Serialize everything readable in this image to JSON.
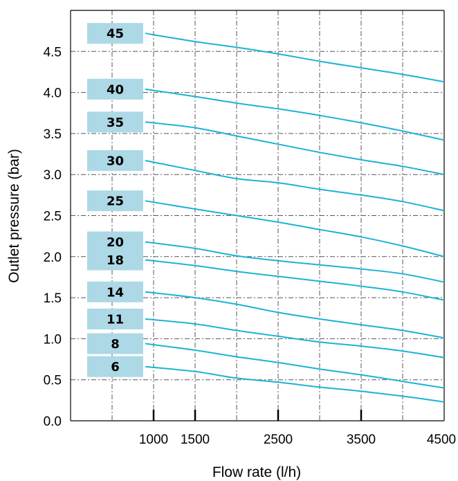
{
  "chart_data": {
    "type": "line",
    "title": "",
    "xlabel": "Flow rate (l/h)",
    "ylabel": "Outlet pressure (bar)",
    "xlim": [
      0,
      4500
    ],
    "ylim": [
      0,
      5
    ],
    "x_ticks": [
      {
        "value": 1000,
        "label": "1000"
      },
      {
        "value": 1500,
        "label": "1500"
      },
      {
        "value": 2500,
        "label": "2500"
      },
      {
        "value": 3500,
        "label": "3500"
      },
      {
        "value": 4500,
        "label": "4500"
      }
    ],
    "y_ticks": [
      {
        "value": 0,
        "label": "0.0"
      },
      {
        "value": 0.5,
        "label": "0.5"
      },
      {
        "value": 1,
        "label": "1.0"
      },
      {
        "value": 1.5,
        "label": "1.5"
      },
      {
        "value": 2,
        "label": "2.0"
      },
      {
        "value": 2.5,
        "label": "2.5"
      },
      {
        "value": 3,
        "label": "3.0"
      },
      {
        "value": 3.5,
        "label": "3.5"
      },
      {
        "value": 4,
        "label": "4.0"
      },
      {
        "value": 4.5,
        "label": "4.5"
      }
    ],
    "grid_x": [
      500,
      1000,
      1500,
      2000,
      2500,
      3000,
      3500,
      4000
    ],
    "grid_y": [
      0.5,
      1,
      1.5,
      2,
      2.5,
      3,
      3.5,
      4,
      4.5
    ],
    "grid": true,
    "line_color": "#1ab3d3",
    "label_box_color": "#add8e6",
    "series": [
      {
        "label": "45",
        "x": [
          900,
          1500,
          2000,
          2500,
          3000,
          3500,
          4000,
          4500
        ],
        "y": [
          4.72,
          4.62,
          4.55,
          4.47,
          4.38,
          4.3,
          4.22,
          4.13
        ]
      },
      {
        "label": "40",
        "x": [
          900,
          1500,
          2000,
          2500,
          3000,
          3500,
          4000,
          4500
        ],
        "y": [
          4.04,
          3.95,
          3.87,
          3.8,
          3.72,
          3.63,
          3.53,
          3.42
        ]
      },
      {
        "label": "35",
        "x": [
          900,
          1500,
          2000,
          2500,
          3000,
          3500,
          4000,
          4500
        ],
        "y": [
          3.64,
          3.57,
          3.47,
          3.37,
          3.27,
          3.18,
          3.1,
          3.0
        ]
      },
      {
        "label": "30",
        "x": [
          900,
          1500,
          2000,
          2500,
          3000,
          3500,
          4000,
          4500
        ],
        "y": [
          3.17,
          3.05,
          2.95,
          2.9,
          2.82,
          2.75,
          2.67,
          2.56
        ]
      },
      {
        "label": "25",
        "x": [
          900,
          1500,
          2000,
          2500,
          3000,
          3500,
          4000,
          4500
        ],
        "y": [
          2.68,
          2.58,
          2.5,
          2.42,
          2.33,
          2.24,
          2.13,
          2.0
        ]
      },
      {
        "label": "20",
        "x": [
          900,
          1500,
          2000,
          2500,
          3000,
          3500,
          4000,
          4500
        ],
        "y": [
          2.18,
          2.1,
          2.01,
          1.95,
          1.9,
          1.85,
          1.79,
          1.69
        ]
      },
      {
        "label": "18",
        "x": [
          900,
          1500,
          2000,
          2500,
          3000,
          3500,
          4000,
          4500
        ],
        "y": [
          1.96,
          1.89,
          1.82,
          1.76,
          1.7,
          1.64,
          1.57,
          1.47
        ]
      },
      {
        "label": "14",
        "x": [
          900,
          1500,
          2000,
          2500,
          3000,
          3500,
          4000,
          4500
        ],
        "y": [
          1.57,
          1.5,
          1.42,
          1.32,
          1.24,
          1.17,
          1.1,
          1.01
        ]
      },
      {
        "label": "11",
        "x": [
          900,
          1500,
          2000,
          2500,
          3000,
          3500,
          4000,
          4500
        ],
        "y": [
          1.24,
          1.18,
          1.1,
          1.03,
          0.96,
          0.91,
          0.85,
          0.77
        ]
      },
      {
        "label": "8",
        "x": [
          900,
          1500,
          2000,
          2500,
          3000,
          3500,
          4000,
          4500
        ],
        "y": [
          0.94,
          0.86,
          0.78,
          0.71,
          0.63,
          0.56,
          0.48,
          0.4
        ]
      },
      {
        "label": "6",
        "x": [
          900,
          1500,
          2000,
          2500,
          3000,
          3500,
          4000,
          4500
        ],
        "y": [
          0.66,
          0.6,
          0.52,
          0.47,
          0.41,
          0.36,
          0.3,
          0.23
        ]
      }
    ]
  }
}
